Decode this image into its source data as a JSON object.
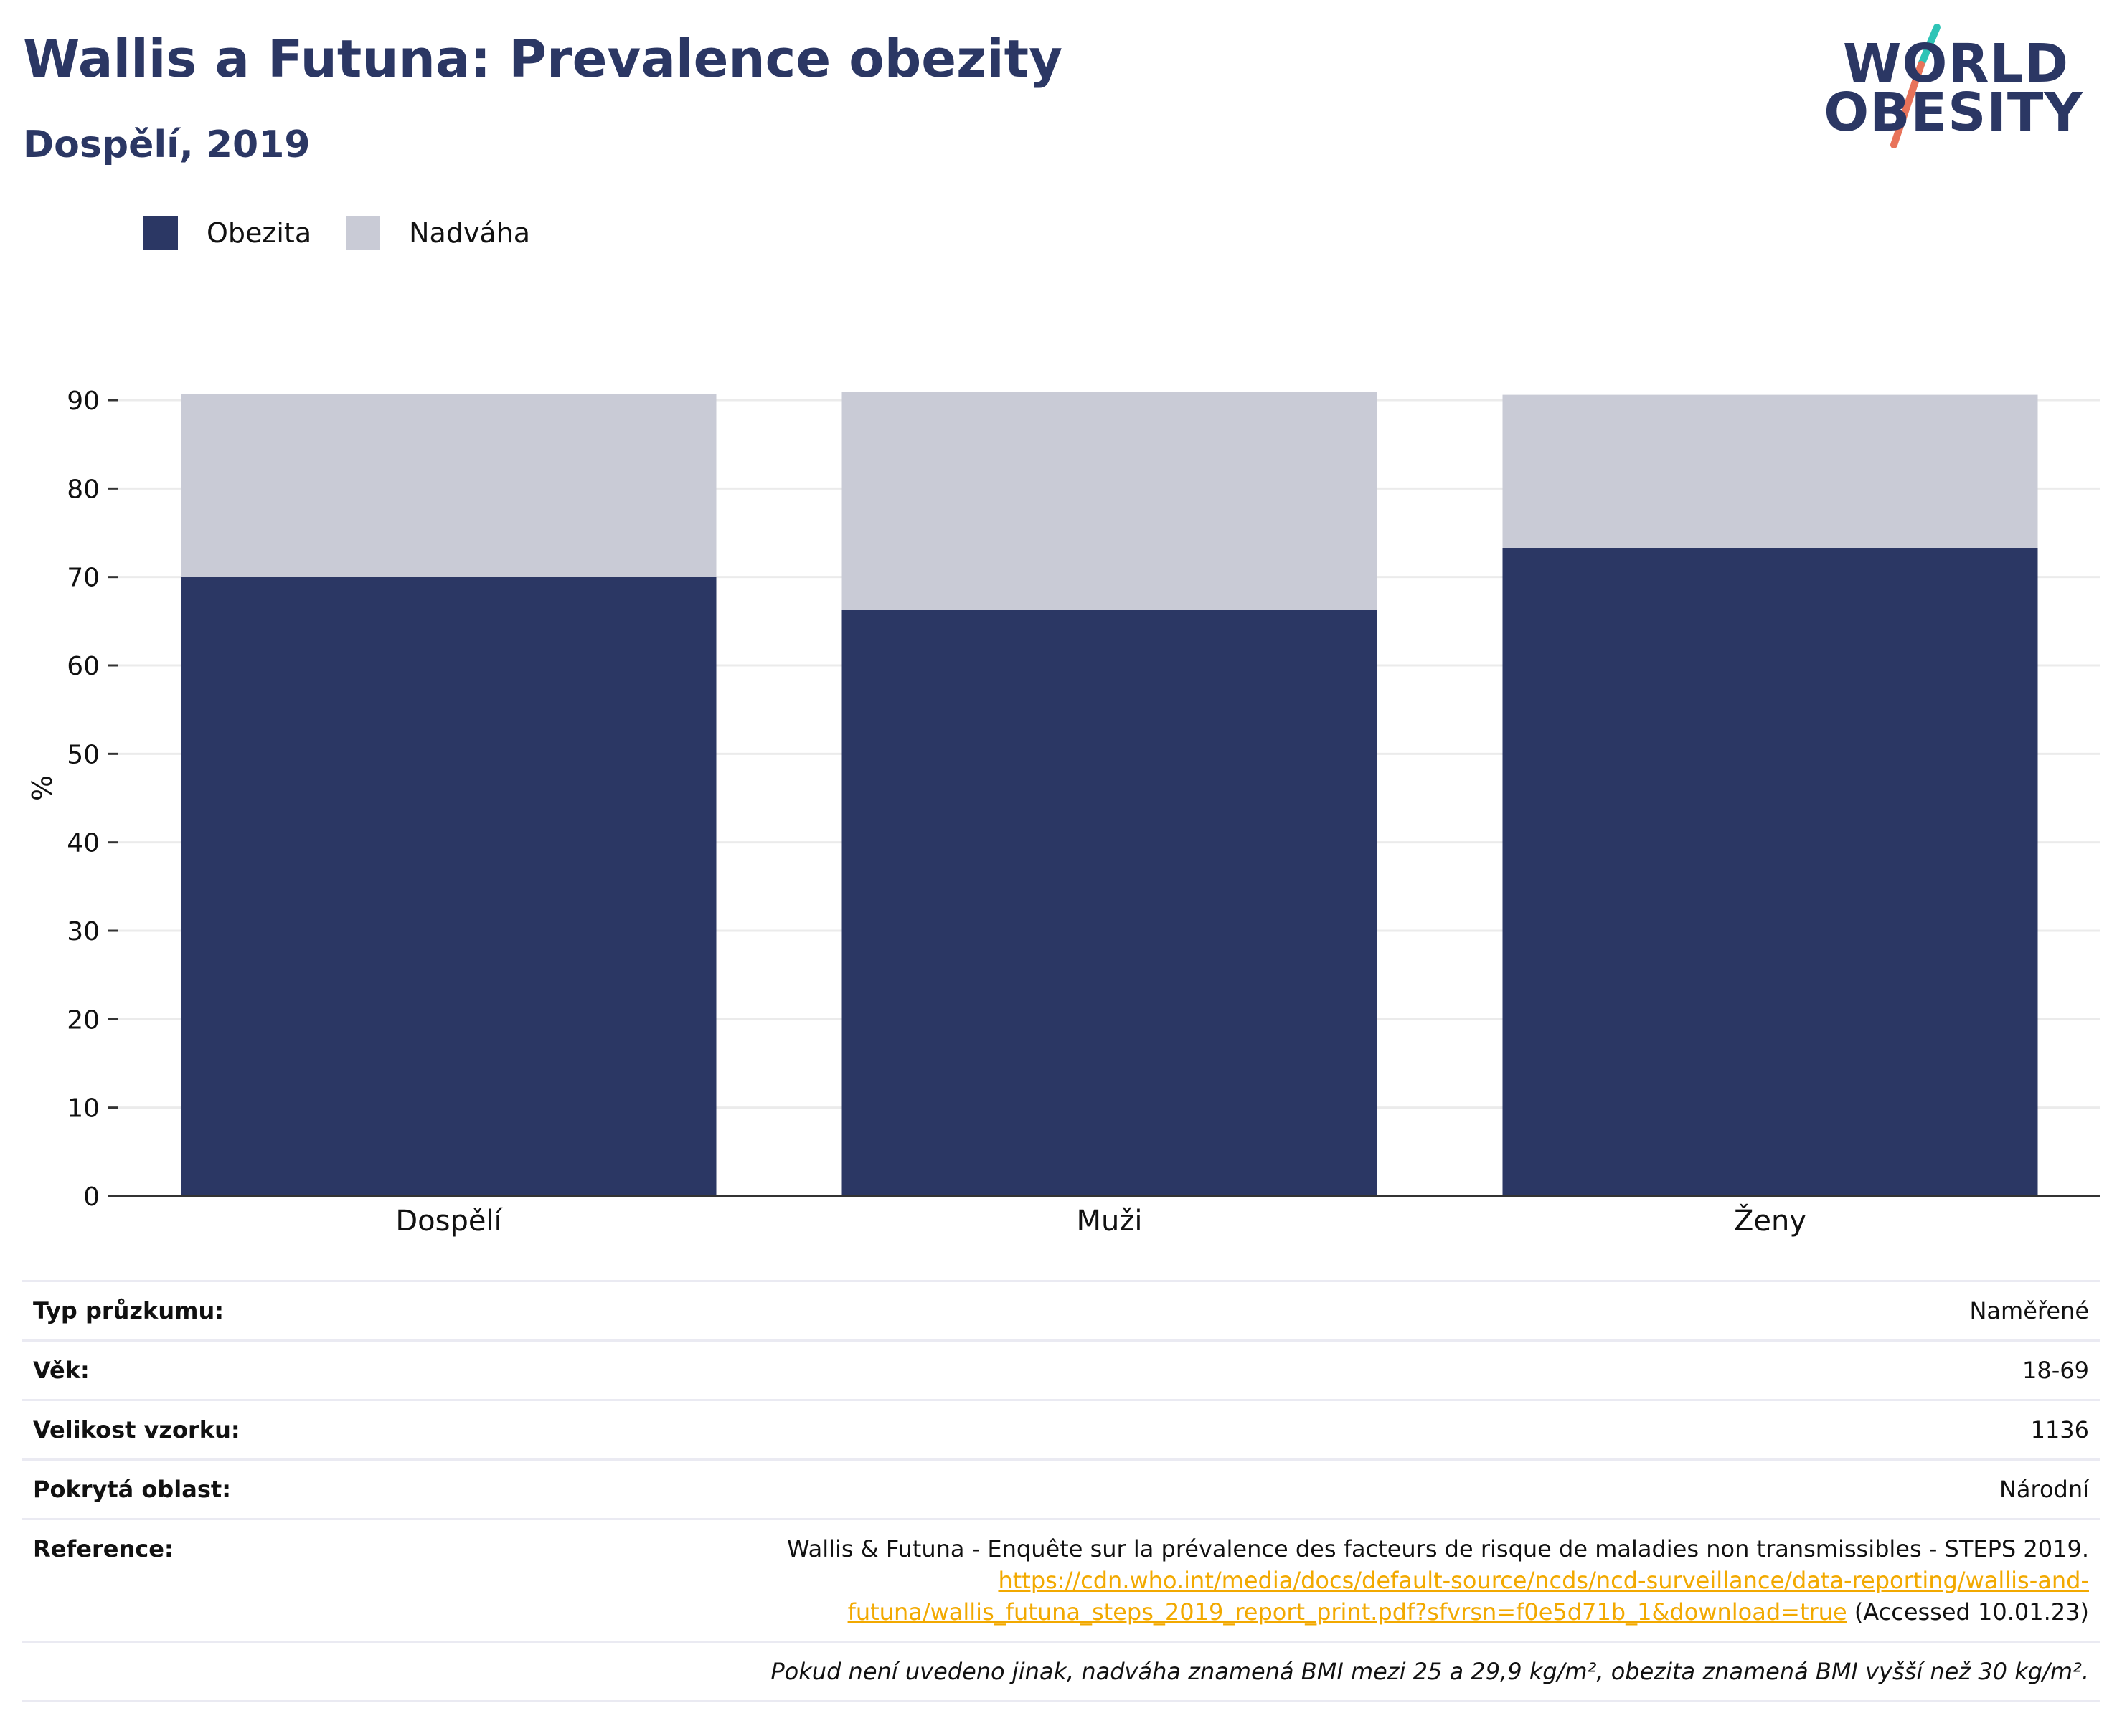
{
  "title": "Wallis a Futuna: Prevalence obezity",
  "subtitle": "Dospělí, 2019",
  "logo": {
    "line1": "WORLD",
    "line2": "OBESITY",
    "accent_teal": "#2ec4b6",
    "accent_coral": "#e8735a"
  },
  "colors": {
    "obesity": "#2b3764",
    "overweight": "#c9cbd6",
    "title": "#2b3764",
    "link": "#f2a900"
  },
  "legend": {
    "obesity": "Obezita",
    "overweight": "Nadváha"
  },
  "chart_data": {
    "type": "bar",
    "stacked": true,
    "categories": [
      "Dospělí",
      "Muži",
      "Ženy"
    ],
    "series": [
      {
        "name": "Obezita",
        "values": [
          70.0,
          66.3,
          73.3
        ]
      },
      {
        "name": "Nadváha",
        "values": [
          20.7,
          24.6,
          17.3
        ]
      }
    ],
    "ylabel": "%",
    "xlabel": "",
    "ylim": [
      0,
      90
    ],
    "yticks": [
      0,
      10,
      20,
      30,
      40,
      50,
      60,
      70,
      80,
      90
    ],
    "grid": true,
    "legend_position": "top-left"
  },
  "info": {
    "survey_type_label": "Typ průzkumu:",
    "survey_type_value": "Naměřené",
    "age_label": "Věk:",
    "age_value": "18-69",
    "sample_label": "Velikost vzorku:",
    "sample_value": "1136",
    "area_label": "Pokrytá oblast:",
    "area_value": "Národní",
    "reference_label": "Reference:",
    "reference_text": "Wallis & Futuna - Enquête sur la prévalence des facteurs de risque de maladies non transmissibles - STEPS 2019.",
    "reference_link_1": "https://cdn.who.int/media/docs/default-source/ncds/ncd-surveillance/data-reporting/wallis-and-",
    "reference_link_2": "futuna/wallis_futuna_steps_2019_report_print.pdf?sfvrsn=f0e5d71b_1&download=true",
    "reference_accessed": " (Accessed 10.01.23)",
    "note": "Pokud není uvedeno jinak, nadváha znamená BMI mezi 25 a 29,9 kg/m², obezita znamená BMI vyšší než 30 kg/m²."
  }
}
